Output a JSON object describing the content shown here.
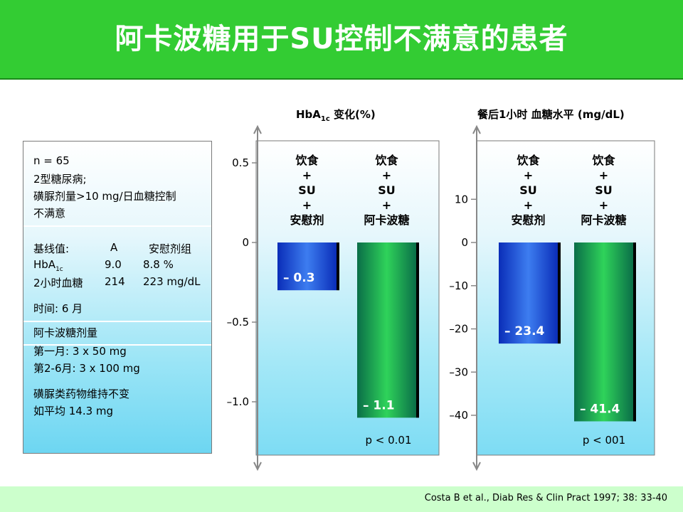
{
  "title": "阿卡波糖用于SU控制不满意的患者",
  "info": {
    "lines": [
      "n = 65",
      "2型糖尿病;",
      "磺脲剂量>10 mg/日血糖控制",
      "不满意"
    ],
    "baseline_label": "基线值:",
    "col_a": "A",
    "col_placebo": "安慰剂组",
    "hba1c_label": "HbA",
    "hba1c_sub": "1c",
    "hba1c_a": "9.0",
    "hba1c_placebo": "8.8  %",
    "bg_label": "2小时血糖",
    "bg_a": "214",
    "bg_placebo": "223 mg/dL",
    "time": "时间: 6 月",
    "dose_title": "阿卡波糖剂量",
    "dose_1": "第一月: 3 x 50 mg",
    "dose_2": "第2-6月: 3 x 100 mg",
    "su_1": "磺脲类药物维持不变",
    "su_2": "如平均 14.3 mg"
  },
  "footer": "Costa B et al., Diab Res & Clin Pract 1997; 38: 33-40",
  "colors": {
    "title_bg": "#33cc33",
    "placebo_bar": "#1a4fd8",
    "acarbose_bar": "#1fa84a",
    "panel_light": "#cdf1fb",
    "footer_bg": "#ccffcc"
  },
  "chart_data": [
    {
      "type": "bar",
      "title": "HbA1c 变化(%)",
      "title_main": "HbA",
      "title_sub": "1c",
      "title_rest": " 变化(%)",
      "categories": [
        "饮食\n+\nSU\n+\n安慰剂",
        "饮食\n+\nSU\n+\n阿卡波糖"
      ],
      "values": [
        -0.3,
        -1.1
      ],
      "value_labels": [
        "– 0.3",
        "– 1.1"
      ],
      "ylim": [
        -1.3,
        0.6
      ],
      "ticks": [
        0.5,
        0,
        -0.5,
        -1.0
      ],
      "tick_labels": [
        "0.5",
        "0",
        "–0.5",
        "–1.0"
      ],
      "annotation": "p < 0.01",
      "grid": false
    },
    {
      "type": "bar",
      "title": "餐后1小时  血糖水平 (mg/dL)",
      "categories": [
        "饮食\n+\nSU\n+\n安慰剂",
        "饮食\n+\nSU\n+\n阿卡波糖"
      ],
      "values": [
        -23.4,
        -41.4
      ],
      "value_labels": [
        "– 23.4",
        "– 41.4"
      ],
      "ylim": [
        -48,
        20
      ],
      "ticks": [
        10,
        0,
        -10,
        -20,
        -30,
        -40
      ],
      "tick_labels": [
        "10",
        "0",
        "–10",
        "–20",
        "–30",
        "–40"
      ],
      "annotation": "p < 001",
      "grid": false
    }
  ]
}
